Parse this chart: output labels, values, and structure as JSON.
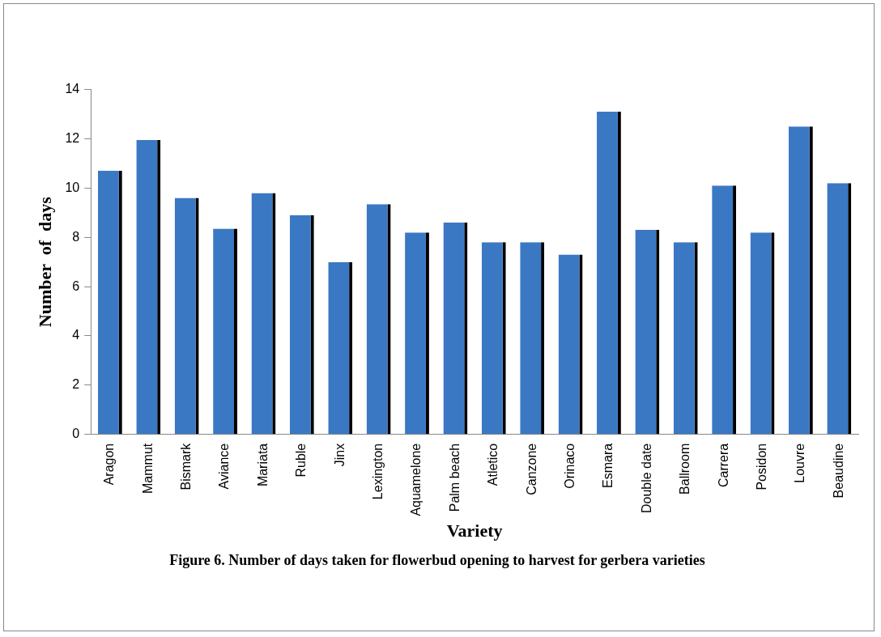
{
  "chart_data": {
    "type": "bar",
    "title": "Figure 6. Number of days taken for flowerbud opening to harvest  for gerbera varieties",
    "xlabel": "Variety",
    "ylabel": "Number  of  days",
    "categories": [
      "Aragon",
      "Mammut",
      "Bismark",
      "Aviance",
      "Mariata",
      "Ruble",
      "Jinx",
      "Lexington",
      "Aquamelone",
      "Palm beach",
      "Atletico",
      "Canzone",
      "Orinaco",
      "Esmara",
      "Double date",
      "Ballroom",
      "Carrera",
      "Posidon",
      "Louvre",
      "Beaudine"
    ],
    "values": [
      10.7,
      11.95,
      9.6,
      8.35,
      9.8,
      8.9,
      7.0,
      9.35,
      8.2,
      8.6,
      7.8,
      7.8,
      7.3,
      13.1,
      8.3,
      7.8,
      10.1,
      8.2,
      12.5,
      10.2
    ],
    "color": "#3a78c4",
    "ylim": [
      0,
      14
    ],
    "yticks": [
      0,
      2,
      4,
      6,
      8,
      10,
      12,
      14
    ],
    "grid": false
  }
}
